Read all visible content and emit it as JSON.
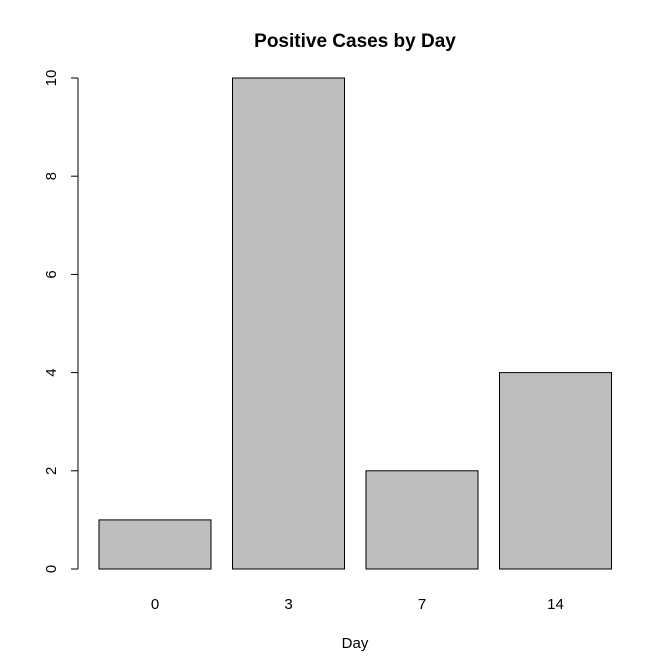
{
  "chart_data": {
    "type": "bar",
    "title": "Positive Cases by Day",
    "xlabel": "Day",
    "ylabel": "",
    "categories": [
      "0",
      "3",
      "7",
      "14"
    ],
    "values": [
      1,
      10,
      2,
      4
    ],
    "ylim": [
      0,
      10
    ],
    "yticks": [
      "0",
      "2",
      "4",
      "6",
      "8",
      "10"
    ],
    "grid": false,
    "legend": "none",
    "bar_color": "#bebebe",
    "border_color": "#000000"
  }
}
